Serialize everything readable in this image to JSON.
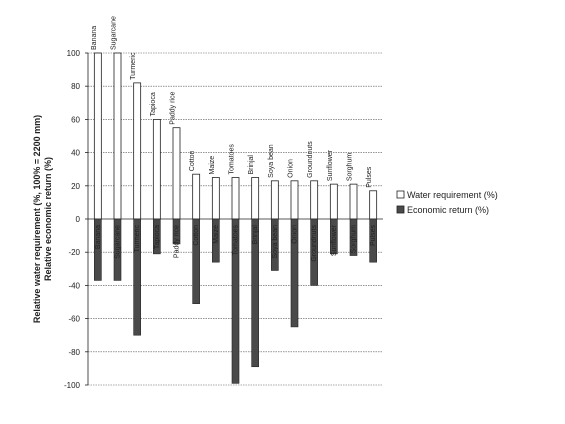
{
  "chart_data": {
    "type": "bar",
    "ylabel_line1": "Relative water requirement (%, 100% = 2200 mm)",
    "ylabel_line2": "Relative economic return (%)",
    "ylim": [
      -100,
      100
    ],
    "yticks": [
      100,
      80,
      60,
      40,
      20,
      0,
      -20,
      -40,
      -60,
      -80,
      -100
    ],
    "grid": true,
    "legend_position": "right",
    "categories": [
      "Banana",
      "Sugarcane",
      "Turmeric",
      "Tapioca",
      "Paddy rice",
      "Cotton",
      "Maize",
      "Tomatoes",
      "Brinjal",
      "Soya bean",
      "Onion",
      "Groundnuts",
      "Sunflower",
      "Sorghum",
      "Pulses"
    ],
    "series": [
      {
        "name": "Water requirement (%)",
        "color": "#ffffff",
        "values": [
          100,
          100,
          82,
          60,
          55,
          27,
          25,
          25,
          25,
          23,
          23,
          23,
          21,
          21,
          17
        ]
      },
      {
        "name": "Economic return (%)",
        "color": "#4a4a4a",
        "values": [
          -37,
          -37,
          -70,
          -21,
          -15,
          -51,
          -26,
          -99,
          -89,
          -31,
          -65,
          -40,
          -21,
          -22,
          -26
        ]
      }
    ]
  }
}
